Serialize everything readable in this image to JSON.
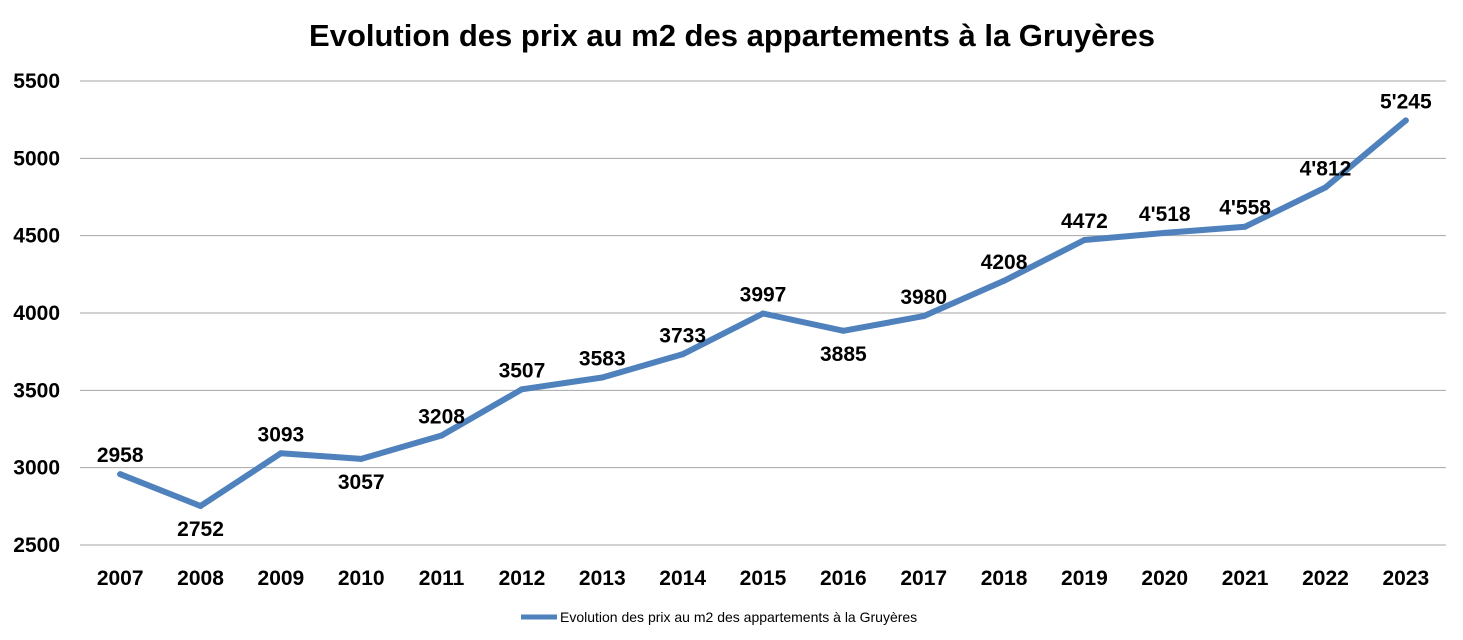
{
  "chart_data": {
    "type": "line",
    "title": "Evolution des prix au m2 des appartements à la Gruyères",
    "categories": [
      "2007",
      "2008",
      "2009",
      "2010",
      "2011",
      "2012",
      "2013",
      "2014",
      "2015",
      "2016",
      "2017",
      "2018",
      "2019",
      "2020",
      "2021",
      "2022",
      "2023"
    ],
    "series": [
      {
        "name": "Evolution des prix au m2 des appartements à la Gruyères",
        "values": [
          2958,
          2752,
          3093,
          3057,
          3208,
          3507,
          3583,
          3733,
          3997,
          3885,
          3980,
          4208,
          4472,
          4518,
          4558,
          4812,
          5245
        ],
        "data_labels": [
          "2958",
          "2752",
          "3093",
          "3057",
          "3208",
          "3507",
          "3583",
          "3733",
          "3997",
          "3885",
          "3980",
          "4208",
          "4472",
          "4'518",
          "4'558",
          "4'812",
          "5'245"
        ],
        "color": "#4f81bd"
      }
    ],
    "ylim": [
      2500,
      5500
    ],
    "yticks": [
      "2500",
      "3000",
      "3500",
      "4000",
      "4500",
      "5000",
      "5500"
    ],
    "xlabel": "",
    "ylabel": "",
    "grid": true,
    "legend": "bottom"
  }
}
